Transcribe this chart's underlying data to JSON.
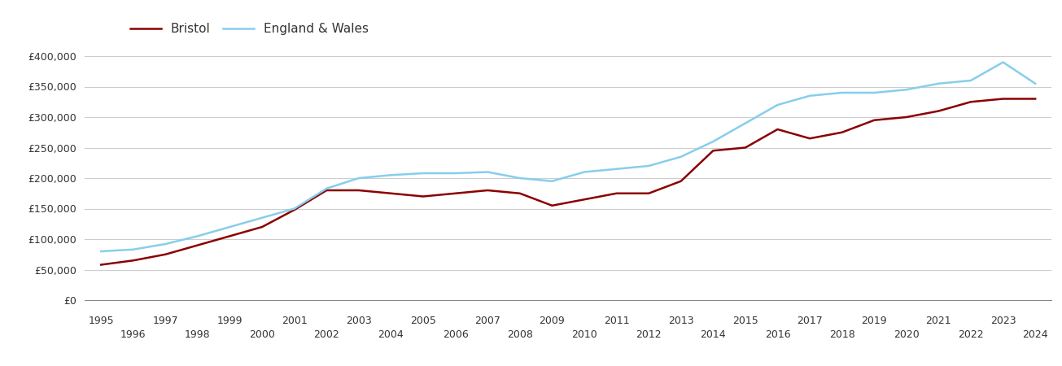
{
  "bristol_color": "#8B0000",
  "england_wales_color": "#87CEEB",
  "background_color": "#ffffff",
  "legend_bristol": "Bristol",
  "legend_ew": "England & Wales",
  "years": [
    1995,
    1996,
    1997,
    1998,
    1999,
    2000,
    2001,
    2002,
    2003,
    2004,
    2005,
    2006,
    2007,
    2008,
    2009,
    2010,
    2011,
    2012,
    2013,
    2014,
    2015,
    2016,
    2017,
    2018,
    2019,
    2020,
    2021,
    2022,
    2023,
    2024
  ],
  "bristol": [
    58000,
    65000,
    75000,
    90000,
    105000,
    120000,
    148000,
    180000,
    180000,
    175000,
    170000,
    175000,
    180000,
    175000,
    155000,
    165000,
    175000,
    175000,
    195000,
    245000,
    250000,
    280000,
    265000,
    275000,
    295000,
    300000,
    310000,
    325000,
    330000,
    330000
  ],
  "england_wales": [
    80000,
    83000,
    92000,
    105000,
    120000,
    135000,
    150000,
    183000,
    200000,
    205000,
    208000,
    208000,
    210000,
    200000,
    195000,
    210000,
    215000,
    220000,
    235000,
    260000,
    290000,
    320000,
    335000,
    340000,
    340000,
    345000,
    355000,
    360000,
    390000,
    355000
  ],
  "ylim": [
    0,
    420000
  ],
  "yticks": [
    0,
    50000,
    100000,
    150000,
    200000,
    250000,
    300000,
    350000,
    400000
  ],
  "line_width": 1.8,
  "grid_color": "#cccccc",
  "grid_linewidth": 0.8,
  "xlim_left": 1994.5,
  "xlim_right": 2024.5,
  "odd_years": [
    1995,
    1997,
    1999,
    2001,
    2003,
    2005,
    2007,
    2009,
    2011,
    2013,
    2015,
    2017,
    2019,
    2021,
    2023
  ],
  "even_years": [
    1996,
    1998,
    2000,
    2002,
    2004,
    2006,
    2008,
    2010,
    2012,
    2014,
    2016,
    2018,
    2020,
    2022,
    2024
  ]
}
